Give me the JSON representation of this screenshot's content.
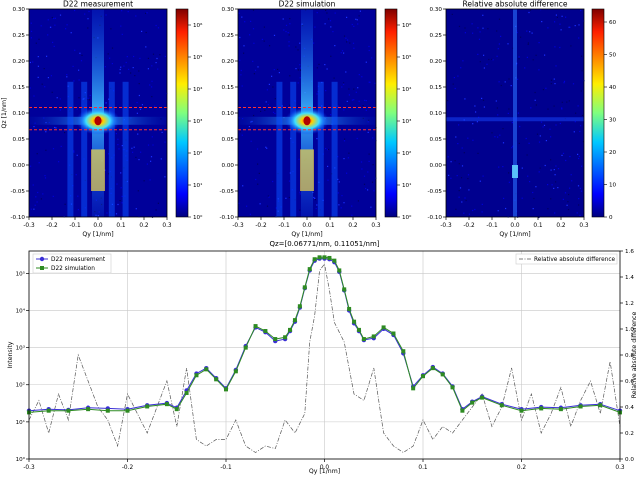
{
  "chart_data": [
    {
      "type": "heatmap",
      "title": "D22 measurement",
      "xlabel": "Qy [1/nm]",
      "ylabel": "Qz [1/nm]",
      "xlim": [
        -0.3,
        0.3
      ],
      "ylim": [
        -0.1,
        0.3
      ],
      "x_ticks": [
        "-0.3",
        "-0.2",
        "-0.1",
        "0.0",
        "0.1",
        "0.2",
        "0.3"
      ],
      "y_ticks": [
        "-0.10",
        "-0.05",
        "0.00",
        "0.05",
        "0.10",
        "0.15",
        "0.20",
        "0.25",
        "0.30"
      ],
      "colorscale": "log",
      "colorbar_ticks": [
        "10⁰",
        "10¹",
        "10²",
        "10³",
        "10⁴",
        "10⁵",
        "10⁶"
      ],
      "colorbar_exponents": [
        0,
        1,
        2,
        3,
        4,
        5,
        6
      ],
      "peak": {
        "qy": 0.0,
        "qz": 0.085
      },
      "slice_lines_qz": [
        0.06771,
        0.11051
      ]
    },
    {
      "type": "heatmap",
      "title": "D22 simulation",
      "xlabel": "Qy [1/nm]",
      "ylabel": "",
      "xlim": [
        -0.3,
        0.3
      ],
      "ylim": [
        -0.1,
        0.3
      ],
      "x_ticks": [
        "-0.3",
        "-0.2",
        "-0.1",
        "0.0",
        "0.1",
        "0.2",
        "0.3"
      ],
      "y_ticks": [
        "-0.10",
        "-0.05",
        "0.00",
        "0.05",
        "0.10",
        "0.15",
        "0.20",
        "0.25",
        "0.30"
      ],
      "colorscale": "log",
      "colorbar_ticks": [
        "10⁰",
        "10¹",
        "10²",
        "10³",
        "10⁴",
        "10⁵",
        "10⁶"
      ],
      "colorbar_exponents": [
        0,
        1,
        2,
        3,
        4,
        5,
        6
      ],
      "peak": {
        "qy": 0.0,
        "qz": 0.085
      },
      "slice_lines_qz": [
        0.06771,
        0.11051
      ]
    },
    {
      "type": "heatmap",
      "title": "Relative absolute difference",
      "xlabel": "Qy [1/nm]",
      "ylabel": "",
      "xlim": [
        -0.3,
        0.3
      ],
      "ylim": [
        -0.1,
        0.3
      ],
      "x_ticks": [
        "-0.3",
        "-0.2",
        "-0.1",
        "0.0",
        "0.1",
        "0.2",
        "0.3"
      ],
      "y_ticks": [
        "-0.10",
        "-0.05",
        "0.00",
        "0.05",
        "0.10",
        "0.15",
        "0.20",
        "0.25",
        "0.30"
      ],
      "colorscale": "linear",
      "colorbar_ticks": [
        "0",
        "10",
        "20",
        "30",
        "40",
        "50",
        "60"
      ],
      "clim": [
        0,
        64
      ]
    },
    {
      "type": "line",
      "title": "Qz=[0.06771/nm, 0.11051/nm]",
      "xlabel": "Qy [1/nm]",
      "ylabel": "Intensity",
      "y2label": "Relative absolute difference",
      "xlim": [
        -0.3,
        0.3
      ],
      "ylim_log": [
        1,
        400000
      ],
      "y2lim": [
        0,
        1.6
      ],
      "yscale": "log",
      "grid": true,
      "x_ticks": [
        "-0.3",
        "-0.2",
        "-0.1",
        "0.0",
        "0.1",
        "0.2",
        "0.3"
      ],
      "y_ticks": [
        "10⁰",
        "10¹",
        "10²",
        "10³",
        "10⁴",
        "10⁵"
      ],
      "y2_ticks": [
        "0.0",
        "0.2",
        "0.4",
        "0.6",
        "0.8",
        "1.0",
        "1.2",
        "1.4",
        "1.6"
      ],
      "legend_left": [
        {
          "name": "D22 measurement",
          "color": "#3a2fd6",
          "marker": "circle"
        },
        {
          "name": "D22 simulation",
          "color": "#2e8b22",
          "marker": "square"
        }
      ],
      "legend_right": [
        {
          "name": "Relative absolute difference",
          "color": "#555555",
          "style": "dash-dot"
        }
      ],
      "series": [
        {
          "name": "D22 measurement",
          "x": [
            -0.3,
            -0.28,
            -0.26,
            -0.24,
            -0.22,
            -0.2,
            -0.18,
            -0.16,
            -0.15,
            -0.14,
            -0.13,
            -0.12,
            -0.11,
            -0.1,
            -0.09,
            -0.08,
            -0.07,
            -0.06,
            -0.05,
            -0.04,
            -0.035,
            -0.03,
            -0.025,
            -0.02,
            -0.015,
            -0.01,
            -0.005,
            0.0,
            0.005,
            0.01,
            0.015,
            0.02,
            0.025,
            0.03,
            0.035,
            0.04,
            0.05,
            0.06,
            0.07,
            0.08,
            0.09,
            0.1,
            0.11,
            0.12,
            0.13,
            0.14,
            0.15,
            0.16,
            0.18,
            0.2,
            0.22,
            0.24,
            0.26,
            0.28,
            0.3
          ],
          "y": [
            20,
            22,
            21,
            24,
            23,
            22,
            28,
            32,
            24,
            70,
            200,
            280,
            150,
            80,
            250,
            1100,
            3500,
            2600,
            1500,
            1700,
            2800,
            5000,
            12000,
            40000,
            120000,
            220000,
            250000,
            250000,
            240000,
            200000,
            110000,
            35000,
            10000,
            4500,
            2800,
            1600,
            1800,
            3200,
            2200,
            700,
            90,
            180,
            300,
            200,
            90,
            22,
            35,
            48,
            30,
            22,
            25,
            24,
            28,
            30,
            20
          ]
        },
        {
          "name": "D22 simulation",
          "x": [
            -0.3,
            -0.28,
            -0.26,
            -0.24,
            -0.22,
            -0.2,
            -0.18,
            -0.16,
            -0.15,
            -0.14,
            -0.13,
            -0.12,
            -0.11,
            -0.1,
            -0.09,
            -0.08,
            -0.07,
            -0.06,
            -0.05,
            -0.04,
            -0.035,
            -0.03,
            -0.025,
            -0.02,
            -0.015,
            -0.01,
            -0.005,
            0.0,
            0.005,
            0.01,
            0.015,
            0.02,
            0.025,
            0.03,
            0.035,
            0.04,
            0.05,
            0.06,
            0.07,
            0.08,
            0.09,
            0.1,
            0.11,
            0.12,
            0.13,
            0.14,
            0.15,
            0.16,
            0.18,
            0.2,
            0.22,
            0.24,
            0.26,
            0.28,
            0.3
          ],
          "y": [
            18,
            20,
            20,
            22,
            20,
            20,
            26,
            30,
            22,
            60,
            180,
            260,
            140,
            75,
            230,
            1000,
            3800,
            2800,
            1700,
            1900,
            3000,
            5500,
            13000,
            42000,
            130000,
            240000,
            270000,
            270000,
            260000,
            220000,
            120000,
            37000,
            11000,
            5000,
            3000,
            1700,
            2000,
            3500,
            2400,
            800,
            80,
            170,
            280,
            190,
            85,
            20,
            33,
            45,
            28,
            20,
            23,
            22,
            26,
            28,
            18
          ]
        },
        {
          "name": "Relative absolute difference",
          "axis": "right",
          "x": [
            -0.3,
            -0.29,
            -0.28,
            -0.27,
            -0.26,
            -0.25,
            -0.24,
            -0.23,
            -0.22,
            -0.21,
            -0.2,
            -0.19,
            -0.18,
            -0.17,
            -0.16,
            -0.15,
            -0.14,
            -0.13,
            -0.12,
            -0.11,
            -0.1,
            -0.09,
            -0.08,
            -0.07,
            -0.06,
            -0.05,
            -0.04,
            -0.03,
            -0.02,
            -0.015,
            -0.01,
            -0.005,
            0.0,
            0.005,
            0.01,
            0.02,
            0.03,
            0.04,
            0.05,
            0.06,
            0.07,
            0.08,
            0.09,
            0.1,
            0.11,
            0.12,
            0.13,
            0.14,
            0.15,
            0.16,
            0.17,
            0.18,
            0.19,
            0.2,
            0.21,
            0.22,
            0.23,
            0.24,
            0.25,
            0.26,
            0.27,
            0.28,
            0.29,
            0.3
          ],
          "y": [
            0.3,
            0.45,
            0.2,
            0.5,
            0.3,
            0.8,
            0.6,
            0.4,
            0.3,
            0.1,
            0.5,
            0.35,
            0.2,
            0.4,
            0.6,
            0.25,
            0.7,
            0.15,
            0.1,
            0.15,
            0.15,
            0.3,
            0.1,
            0.05,
            0.1,
            0.08,
            0.3,
            0.2,
            0.35,
            0.9,
            1.1,
            1.45,
            1.5,
            1.3,
            1.05,
            0.9,
            0.5,
            0.45,
            0.7,
            0.2,
            0.1,
            0.05,
            0.1,
            0.3,
            0.15,
            0.25,
            0.2,
            0.3,
            0.4,
            0.5,
            0.25,
            0.4,
            0.7,
            0.3,
            0.5,
            0.2,
            0.35,
            0.55,
            0.25,
            0.45,
            0.6,
            0.35,
            0.75,
            0.25
          ]
        }
      ]
    }
  ]
}
